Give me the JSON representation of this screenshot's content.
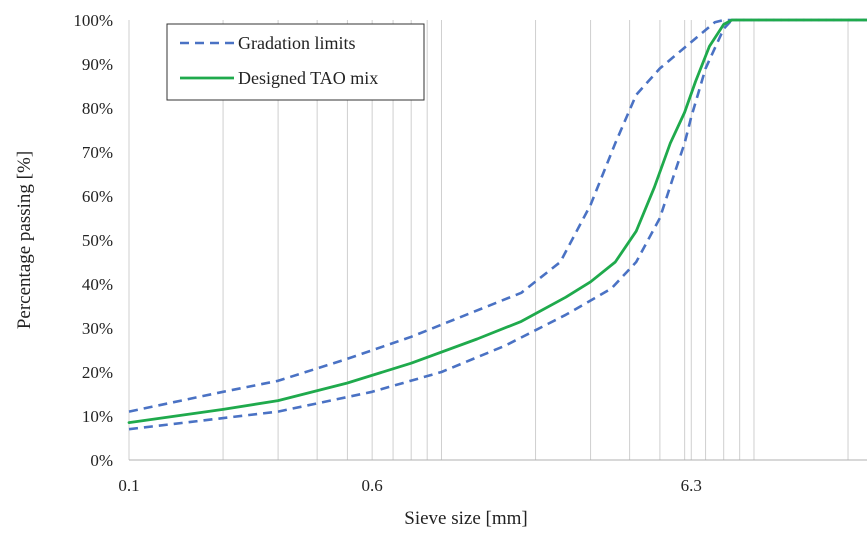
{
  "chart_data": {
    "type": "line",
    "title": "",
    "xlabel": "Sieve size [mm]",
    "ylabel": "Percentage passing [%]",
    "x_scale": "log",
    "xlim": [
      0.1,
      23
    ],
    "ylim": [
      0,
      100
    ],
    "x_tick_labels": [
      {
        "value": 0.1,
        "label": "0.1"
      },
      {
        "value": 0.6,
        "label": "0.6"
      },
      {
        "value": 6.3,
        "label": "6.3"
      }
    ],
    "y_tick_labels": [
      {
        "value": 0,
        "label": "0%"
      },
      {
        "value": 10,
        "label": "10%"
      },
      {
        "value": 20,
        "label": "20%"
      },
      {
        "value": 30,
        "label": "30%"
      },
      {
        "value": 40,
        "label": "40%"
      },
      {
        "value": 50,
        "label": "50%"
      },
      {
        "value": 60,
        "label": "60%"
      },
      {
        "value": 70,
        "label": "70%"
      },
      {
        "value": 80,
        "label": "80%"
      },
      {
        "value": 90,
        "label": "90%"
      },
      {
        "value": 100,
        "label": "100%"
      }
    ],
    "vertical_gridlines": [
      0.1,
      0.2,
      0.3,
      0.4,
      0.5,
      0.6,
      0.7,
      0.8,
      0.9,
      1,
      2,
      3,
      4,
      5,
      6,
      6.3,
      7,
      8,
      9,
      10,
      20
    ],
    "grid": true,
    "legend_position": "top-left",
    "series": [
      {
        "name": "Gradation limits",
        "style": "dashed",
        "color": "#4a72c4",
        "points": [
          [
            0.1,
            11
          ],
          [
            0.2,
            15.5
          ],
          [
            0.3,
            18
          ],
          [
            0.5,
            23
          ],
          [
            0.8,
            28
          ],
          [
            1.2,
            33
          ],
          [
            1.8,
            38
          ],
          [
            2.4,
            45
          ],
          [
            3.0,
            58
          ],
          [
            3.6,
            72
          ],
          [
            4.2,
            83
          ],
          [
            5.0,
            89
          ],
          [
            6.3,
            95
          ],
          [
            7.5,
            99.5
          ],
          [
            8,
            100
          ],
          [
            23,
            100
          ]
        ]
      },
      {
        "name": "",
        "style": "dashed",
        "color": "#4a72c4",
        "points": [
          [
            0.1,
            7
          ],
          [
            0.3,
            11
          ],
          [
            0.6,
            15.5
          ],
          [
            1.0,
            20
          ],
          [
            1.6,
            26
          ],
          [
            2.5,
            33
          ],
          [
            3.5,
            39
          ],
          [
            4.2,
            45
          ],
          [
            5.0,
            55
          ],
          [
            5.5,
            64
          ],
          [
            6.0,
            72
          ],
          [
            6.3,
            78
          ],
          [
            7.0,
            89
          ],
          [
            8.0,
            98
          ],
          [
            8.5,
            100
          ],
          [
            23,
            100
          ]
        ]
      },
      {
        "name": "Designed TAO mix",
        "style": "solid",
        "color": "#1faa4c",
        "points": [
          [
            0.1,
            8.5
          ],
          [
            0.2,
            11.5
          ],
          [
            0.3,
            13.5
          ],
          [
            0.5,
            17.5
          ],
          [
            0.8,
            22
          ],
          [
            1.3,
            27.5
          ],
          [
            1.8,
            31.5
          ],
          [
            2.5,
            37
          ],
          [
            3.0,
            40.5
          ],
          [
            3.6,
            45
          ],
          [
            4.2,
            52
          ],
          [
            4.8,
            62
          ],
          [
            5.4,
            72
          ],
          [
            6.0,
            79
          ],
          [
            6.5,
            86
          ],
          [
            7.2,
            94
          ],
          [
            8.0,
            99
          ],
          [
            8.5,
            100
          ],
          [
            23,
            100
          ]
        ]
      }
    ]
  }
}
